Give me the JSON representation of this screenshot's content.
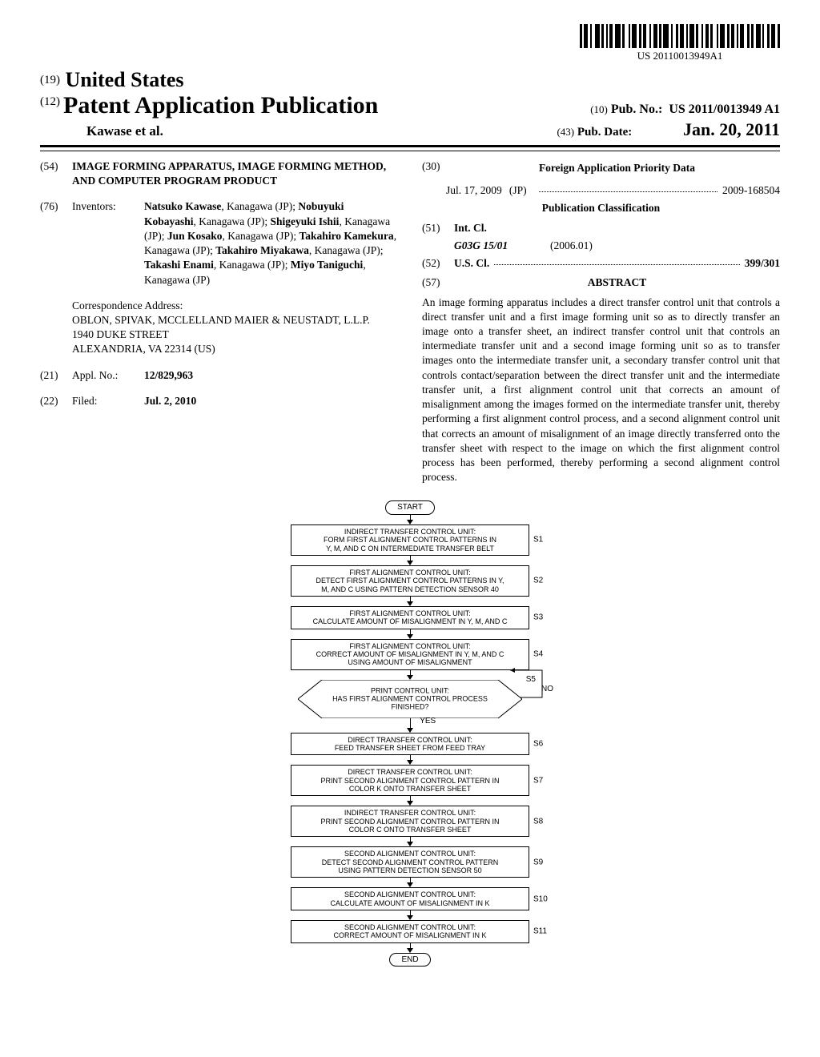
{
  "barcode_number": "US 20110013949A1",
  "header": {
    "country_code": "(19)",
    "country": "United States",
    "pub_code": "(12)",
    "pub_kind": "Patent Application Publication",
    "authors": "Kawase et al.",
    "pubno_code": "(10)",
    "pubno_label": "Pub. No.:",
    "pubno": "US 2011/0013949 A1",
    "pubdate_code": "(43)",
    "pubdate_label": "Pub. Date:",
    "pubdate": "Jan. 20, 2011"
  },
  "left": {
    "title_code": "(54)",
    "title": "IMAGE FORMING APPARATUS, IMAGE FORMING METHOD, AND COMPUTER PROGRAM PRODUCT",
    "inv_code": "(76)",
    "inv_label": "Inventors:",
    "inventors_html": "<b>Natsuko Kawase</b>, Kanagawa (JP); <b>Nobuyuki Kobayashi</b>, Kanagawa (JP); <b>Shigeyuki Ishii</b>, Kanagawa (JP); <b>Jun Kosako</b>, Kanagawa (JP); <b>Takahiro Kamekura</b>, Kanagawa (JP); <b>Takahiro Miyakawa</b>, Kanagawa (JP); <b>Takashi Enami</b>, Kanagawa (JP); <b>Miyo Taniguchi</b>, Kanagawa (JP)",
    "corr_label": "Correspondence Address:",
    "corr_body": "OBLON, SPIVAK, MCCLELLAND MAIER & NEUSTADT, L.L.P.\n1940 DUKE STREET\nALEXANDRIA, VA 22314 (US)",
    "appl_code": "(21)",
    "appl_label": "Appl. No.:",
    "appl_no": "12/829,963",
    "filed_code": "(22)",
    "filed_label": "Filed:",
    "filed": "Jul. 2, 2010"
  },
  "right": {
    "foreign_code": "(30)",
    "foreign_head": "Foreign Application Priority Data",
    "foreign_date": "Jul. 17, 2009",
    "foreign_cc": "(JP)",
    "foreign_no": "2009-168504",
    "class_head": "Publication Classification",
    "intcl_code": "(51)",
    "intcl_label": "Int. Cl.",
    "intcl_sym": "G03G 15/01",
    "intcl_ver": "(2006.01)",
    "uscl_code": "(52)",
    "uscl_label": "U.S. Cl.",
    "uscl_val": "399/301",
    "abs_code": "(57)",
    "abs_head": "ABSTRACT",
    "abstract": "An image forming apparatus includes a direct transfer control unit that controls a direct transfer unit and a first image forming unit so as to directly transfer an image onto a transfer sheet, an indirect transfer control unit that controls an intermediate transfer unit and a second image forming unit so as to transfer images onto the intermediate transfer unit, a secondary transfer control unit that controls contact/separation between the direct transfer unit and the intermediate transfer unit, a first alignment control unit that corrects an amount of misalignment among the images formed on the intermediate transfer unit, thereby performing a first alignment control process, and a second alignment control unit that corrects an amount of misalignment of an image directly transferred onto the transfer sheet with respect to the image on which the first alignment control process has been performed, thereby performing a second alignment control process."
  },
  "flow": {
    "start": "START",
    "end": "END",
    "yes": "YES",
    "no": "NO",
    "s5_tag": "S5",
    "steps": [
      {
        "tag": "S1",
        "text": "INDIRECT TRANSFER CONTROL UNIT:\nFORM FIRST ALIGNMENT CONTROL PATTERNS IN\nY, M, AND C ON INTERMEDIATE TRANSFER BELT"
      },
      {
        "tag": "S2",
        "text": "FIRST ALIGNMENT CONTROL UNIT:\nDETECT FIRST ALIGNMENT CONTROL PATTERNS IN Y,\nM, AND C USING PATTERN DETECTION SENSOR 40"
      },
      {
        "tag": "S3",
        "text": "FIRST ALIGNMENT CONTROL UNIT:\nCALCULATE AMOUNT OF MISALIGNMENT IN Y, M, AND C"
      },
      {
        "tag": "S4",
        "text": "FIRST ALIGNMENT CONTROL UNIT:\nCORRECT AMOUNT OF MISALIGNMENT IN Y, M, AND C\nUSING AMOUNT OF MISALIGNMENT"
      },
      {
        "tag": "DEC",
        "text": "PRINT CONTROL UNIT:\nHAS FIRST ALIGNMENT CONTROL PROCESS\nFINISHED?"
      },
      {
        "tag": "S6",
        "text": "DIRECT TRANSFER CONTROL UNIT:\nFEED TRANSFER SHEET FROM FEED TRAY"
      },
      {
        "tag": "S7",
        "text": "DIRECT TRANSFER CONTROL UNIT:\nPRINT SECOND ALIGNMENT CONTROL PATTERN IN\nCOLOR K ONTO TRANSFER SHEET"
      },
      {
        "tag": "S8",
        "text": "INDIRECT TRANSFER CONTROL UNIT:\nPRINT SECOND ALIGNMENT CONTROL PATTERN IN\nCOLOR C ONTO TRANSFER SHEET"
      },
      {
        "tag": "S9",
        "text": "SECOND ALIGNMENT CONTROL UNIT:\nDETECT SECOND ALIGNMENT CONTROL PATTERN\nUSING PATTERN DETECTION SENSOR 50"
      },
      {
        "tag": "S10",
        "text": "SECOND ALIGNMENT CONTROL UNIT:\nCALCULATE AMOUNT OF MISALIGNMENT IN K"
      },
      {
        "tag": "S11",
        "text": "SECOND ALIGNMENT CONTROL UNIT:\nCORRECT AMOUNT OF MISALIGNMENT IN K"
      }
    ]
  }
}
